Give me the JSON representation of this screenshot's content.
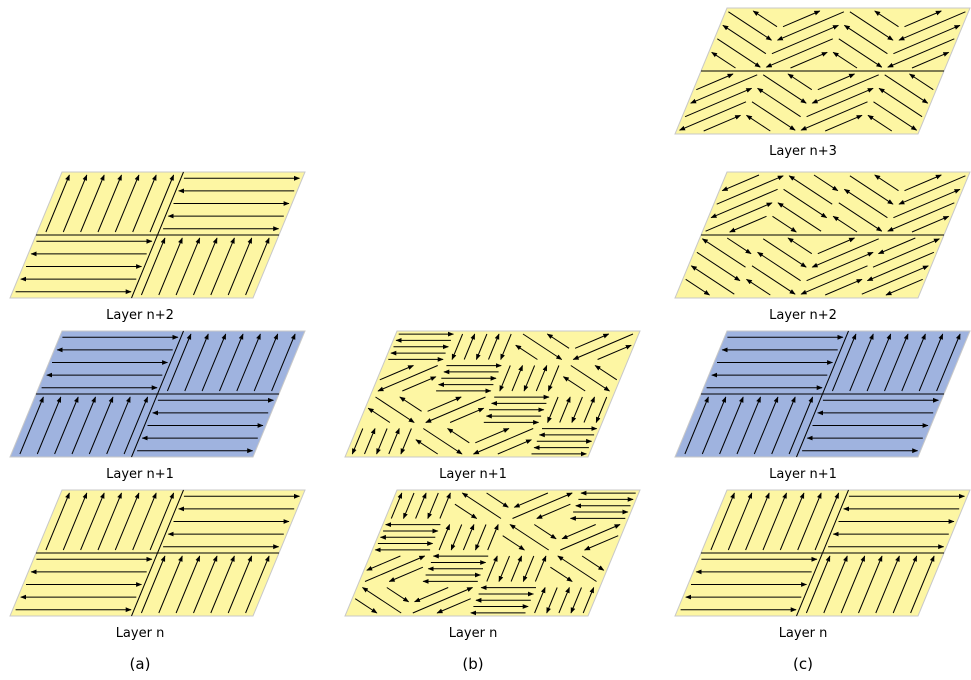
{
  "panels": [
    {
      "label": "(a)",
      "layers": [
        "Layer n+2",
        "Layer n+1",
        "Layer n"
      ]
    },
    {
      "label": "(b)",
      "layers": [
        "Layer n+1",
        "Layer n"
      ]
    },
    {
      "label": "(c)",
      "layers": [
        "Layer n+3",
        "Layer n+2",
        "Layer n+1",
        "Layer n"
      ]
    }
  ]
}
